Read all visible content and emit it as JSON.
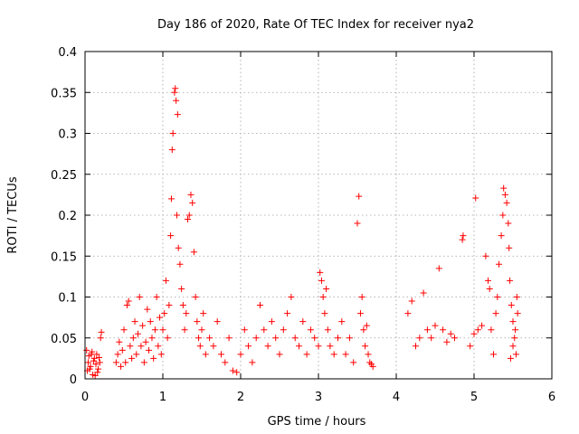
{
  "chart_data": {
    "type": "scatter",
    "title": "Day 186 of 2020, Rate Of TEC Index for receiver nya2",
    "xlabel": "GPS time / hours",
    "ylabel": "ROTI / TECUs",
    "xlim": [
      0,
      6
    ],
    "ylim": [
      0,
      0.4
    ],
    "xticks": [
      0,
      1,
      2,
      3,
      4,
      5,
      6
    ],
    "xtick_labels": [
      "0",
      "1",
      "2",
      "3",
      "4",
      "5",
      "6"
    ],
    "yticks": [
      0,
      0.05,
      0.1,
      0.15,
      0.2,
      0.25,
      0.3,
      0.35,
      0.4
    ],
    "ytick_labels": [
      "0",
      "0.05",
      "0.1",
      "0.15",
      "0.2",
      "0.25",
      "0.3",
      "0.35",
      "0.4"
    ],
    "grid": true,
    "marker": "+",
    "color": "#ff0000",
    "series": [
      {
        "name": "nya2",
        "points": [
          [
            0.02,
            0.035
          ],
          [
            0.04,
            0.02
          ],
          [
            0.06,
            0.012
          ],
          [
            0.08,
            0.03
          ],
          [
            0.1,
            0.005
          ],
          [
            0.12,
            0.025
          ],
          [
            0.14,
            0.018
          ],
          [
            0.16,
            0.008
          ],
          [
            0.03,
            0.01
          ],
          [
            0.05,
            0.028
          ],
          [
            0.07,
            0.015
          ],
          [
            0.09,
            0.033
          ],
          [
            0.11,
            0.022
          ],
          [
            0.13,
            0.004
          ],
          [
            0.15,
            0.03
          ],
          [
            0.17,
            0.012
          ],
          [
            0.19,
            0.02
          ],
          [
            0.2,
            0.05
          ],
          [
            0.21,
            0.057
          ],
          [
            0.18,
            0.026
          ],
          [
            0.4,
            0.02
          ],
          [
            0.42,
            0.03
          ],
          [
            0.44,
            0.045
          ],
          [
            0.46,
            0.015
          ],
          [
            0.48,
            0.035
          ],
          [
            0.5,
            0.06
          ],
          [
            0.52,
            0.02
          ],
          [
            0.54,
            0.09
          ],
          [
            0.56,
            0.095
          ],
          [
            0.58,
            0.04
          ],
          [
            0.6,
            0.025
          ],
          [
            0.62,
            0.05
          ],
          [
            0.64,
            0.07
          ],
          [
            0.66,
            0.03
          ],
          [
            0.68,
            0.055
          ],
          [
            0.7,
            0.1
          ],
          [
            0.72,
            0.04
          ],
          [
            0.74,
            0.065
          ],
          [
            0.76,
            0.02
          ],
          [
            0.78,
            0.045
          ],
          [
            0.8,
            0.085
          ],
          [
            0.82,
            0.035
          ],
          [
            0.84,
            0.07
          ],
          [
            0.86,
            0.05
          ],
          [
            0.88,
            0.025
          ],
          [
            0.9,
            0.06
          ],
          [
            0.92,
            0.1
          ],
          [
            0.94,
            0.04
          ],
          [
            0.96,
            0.075
          ],
          [
            0.98,
            0.03
          ],
          [
            1.0,
            0.06
          ],
          [
            1.02,
            0.08
          ],
          [
            1.04,
            0.12
          ],
          [
            1.06,
            0.05
          ],
          [
            1.08,
            0.09
          ],
          [
            1.1,
            0.175
          ],
          [
            1.11,
            0.22
          ],
          [
            1.12,
            0.28
          ],
          [
            1.13,
            0.3
          ],
          [
            1.15,
            0.35
          ],
          [
            1.16,
            0.355
          ],
          [
            1.17,
            0.34
          ],
          [
            1.19,
            0.323
          ],
          [
            1.18,
            0.2
          ],
          [
            1.2,
            0.16
          ],
          [
            1.22,
            0.14
          ],
          [
            1.24,
            0.11
          ],
          [
            1.26,
            0.09
          ],
          [
            1.28,
            0.06
          ],
          [
            1.3,
            0.08
          ],
          [
            1.32,
            0.195
          ],
          [
            1.34,
            0.2
          ],
          [
            1.36,
            0.225
          ],
          [
            1.38,
            0.215
          ],
          [
            1.4,
            0.155
          ],
          [
            1.42,
            0.1
          ],
          [
            1.44,
            0.07
          ],
          [
            1.46,
            0.05
          ],
          [
            1.48,
            0.04
          ],
          [
            1.5,
            0.06
          ],
          [
            1.52,
            0.08
          ],
          [
            1.55,
            0.03
          ],
          [
            1.6,
            0.05
          ],
          [
            1.65,
            0.04
          ],
          [
            1.7,
            0.07
          ],
          [
            1.75,
            0.03
          ],
          [
            1.8,
            0.02
          ],
          [
            1.85,
            0.05
          ],
          [
            1.9,
            0.01
          ],
          [
            1.95,
            0.008
          ],
          [
            2.0,
            0.03
          ],
          [
            2.05,
            0.06
          ],
          [
            2.1,
            0.04
          ],
          [
            2.15,
            0.02
          ],
          [
            2.2,
            0.05
          ],
          [
            2.25,
            0.09
          ],
          [
            2.3,
            0.06
          ],
          [
            2.35,
            0.04
          ],
          [
            2.4,
            0.07
          ],
          [
            2.45,
            0.05
          ],
          [
            2.5,
            0.03
          ],
          [
            2.55,
            0.06
          ],
          [
            2.6,
            0.08
          ],
          [
            2.65,
            0.1
          ],
          [
            2.7,
            0.05
          ],
          [
            2.75,
            0.04
          ],
          [
            2.8,
            0.07
          ],
          [
            2.85,
            0.03
          ],
          [
            2.9,
            0.06
          ],
          [
            2.95,
            0.05
          ],
          [
            3.0,
            0.04
          ],
          [
            3.02,
            0.13
          ],
          [
            3.04,
            0.12
          ],
          [
            3.06,
            0.1
          ],
          [
            3.08,
            0.08
          ],
          [
            3.1,
            0.11
          ],
          [
            3.12,
            0.06
          ],
          [
            3.15,
            0.04
          ],
          [
            3.2,
            0.03
          ],
          [
            3.25,
            0.05
          ],
          [
            3.3,
            0.07
          ],
          [
            3.35,
            0.03
          ],
          [
            3.4,
            0.05
          ],
          [
            3.45,
            0.02
          ],
          [
            3.5,
            0.19
          ],
          [
            3.52,
            0.223
          ],
          [
            3.54,
            0.08
          ],
          [
            3.56,
            0.1
          ],
          [
            3.58,
            0.06
          ],
          [
            3.6,
            0.04
          ],
          [
            3.62,
            0.065
          ],
          [
            3.64,
            0.03
          ],
          [
            3.66,
            0.02
          ],
          [
            3.68,
            0.018
          ],
          [
            3.7,
            0.015
          ],
          [
            4.15,
            0.08
          ],
          [
            4.2,
            0.095
          ],
          [
            4.25,
            0.04
          ],
          [
            4.3,
            0.05
          ],
          [
            4.35,
            0.105
          ],
          [
            4.4,
            0.06
          ],
          [
            4.45,
            0.05
          ],
          [
            4.5,
            0.065
          ],
          [
            4.55,
            0.135
          ],
          [
            4.6,
            0.06
          ],
          [
            4.65,
            0.045
          ],
          [
            4.7,
            0.055
          ],
          [
            4.75,
            0.05
          ],
          [
            4.85,
            0.17
          ],
          [
            4.86,
            0.175
          ],
          [
            4.95,
            0.04
          ],
          [
            5.0,
            0.055
          ],
          [
            5.02,
            0.221
          ],
          [
            5.05,
            0.06
          ],
          [
            5.1,
            0.065
          ],
          [
            5.15,
            0.15
          ],
          [
            5.18,
            0.12
          ],
          [
            5.2,
            0.11
          ],
          [
            5.22,
            0.06
          ],
          [
            5.25,
            0.03
          ],
          [
            5.28,
            0.08
          ],
          [
            5.3,
            0.1
          ],
          [
            5.32,
            0.14
          ],
          [
            5.35,
            0.175
          ],
          [
            5.37,
            0.2
          ],
          [
            5.38,
            0.233
          ],
          [
            5.4,
            0.225
          ],
          [
            5.42,
            0.215
          ],
          [
            5.44,
            0.19
          ],
          [
            5.45,
            0.16
          ],
          [
            5.46,
            0.12
          ],
          [
            5.48,
            0.09
          ],
          [
            5.5,
            0.07
          ],
          [
            5.52,
            0.05
          ],
          [
            5.54,
            0.03
          ],
          [
            5.55,
            0.1
          ],
          [
            5.56,
            0.08
          ],
          [
            5.5,
            0.04
          ],
          [
            5.53,
            0.06
          ],
          [
            5.47,
            0.025
          ]
        ]
      }
    ]
  }
}
